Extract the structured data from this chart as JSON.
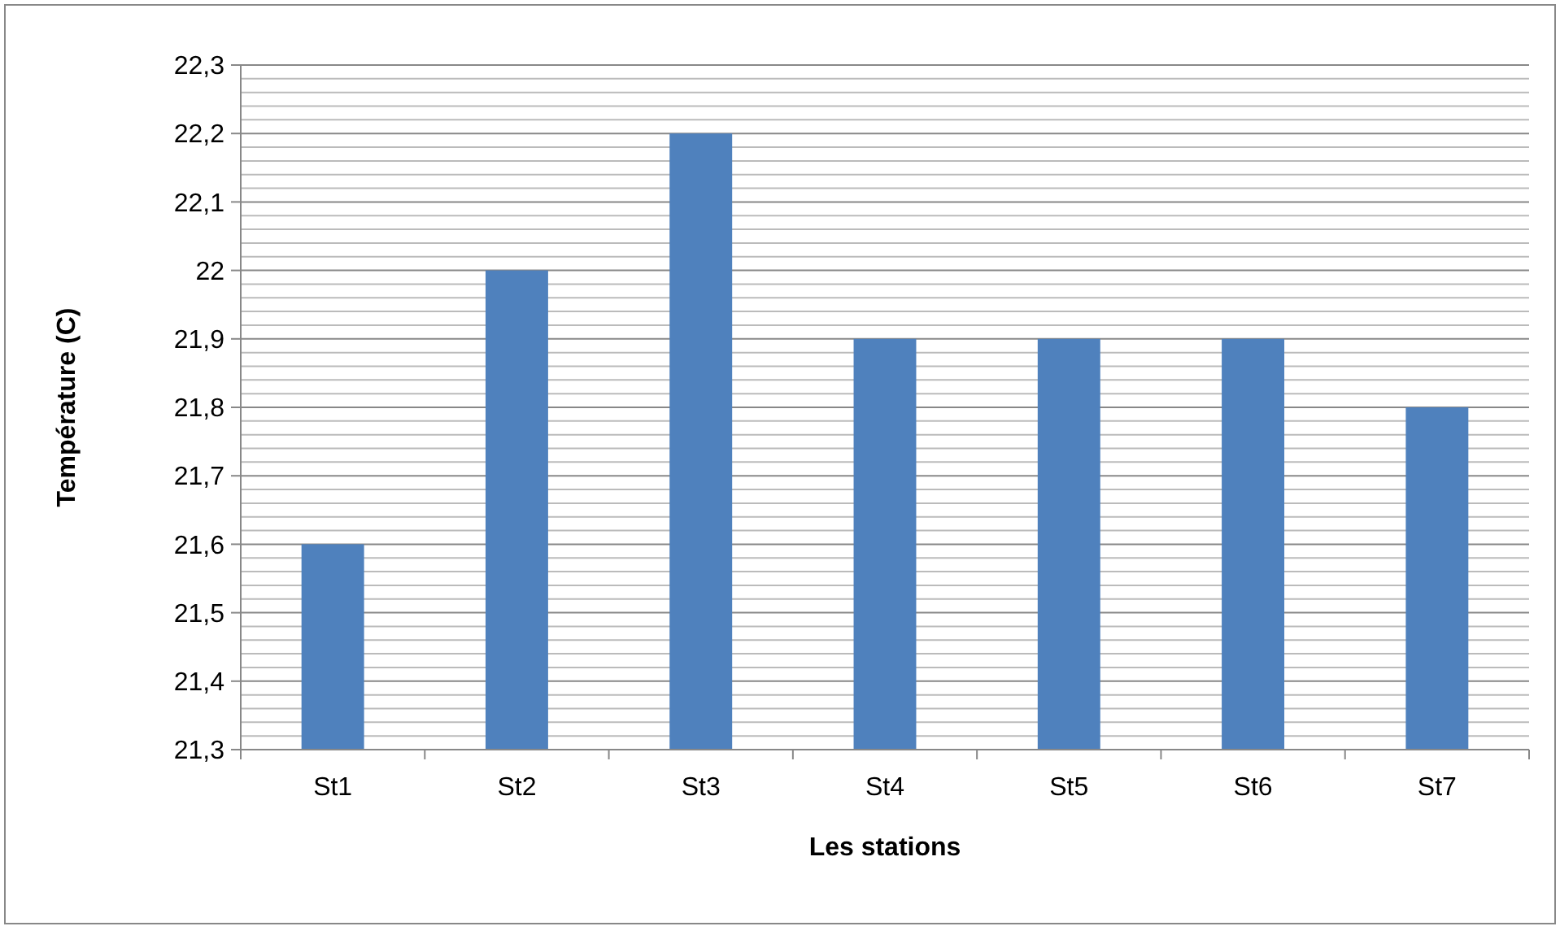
{
  "chart_data": {
    "type": "bar",
    "xlabel": "Les stations",
    "ylabel": "Température (C)",
    "categories": [
      "St1",
      "St2",
      "St3",
      "St4",
      "St5",
      "St6",
      "St7"
    ],
    "values": [
      21.6,
      22.0,
      22.2,
      21.9,
      21.9,
      21.9,
      21.8
    ],
    "color": "#4f81bd",
    "ylim": [
      21.3,
      22.3
    ],
    "yticks": [
      {
        "value": 21.3,
        "label": "21,3"
      },
      {
        "value": 21.32,
        "label": null
      },
      {
        "value": 21.34,
        "label": null
      },
      {
        "value": 21.36,
        "label": null
      },
      {
        "value": 21.38,
        "label": null
      },
      {
        "value": 21.4,
        "label": "21,4"
      },
      {
        "value": 21.42,
        "label": null
      },
      {
        "value": 21.44,
        "label": null
      },
      {
        "value": 21.46,
        "label": null
      },
      {
        "value": 21.48,
        "label": null
      },
      {
        "value": 21.5,
        "label": "21,5"
      },
      {
        "value": 21.52,
        "label": null
      },
      {
        "value": 21.54,
        "label": null
      },
      {
        "value": 21.56,
        "label": null
      },
      {
        "value": 21.58,
        "label": null
      },
      {
        "value": 21.6,
        "label": "21,6"
      },
      {
        "value": 21.62,
        "label": null
      },
      {
        "value": 21.64,
        "label": null
      },
      {
        "value": 21.66,
        "label": null
      },
      {
        "value": 21.68,
        "label": null
      },
      {
        "value": 21.7,
        "label": "21,7"
      },
      {
        "value": 21.72,
        "label": null
      },
      {
        "value": 21.74,
        "label": null
      },
      {
        "value": 21.76,
        "label": null
      },
      {
        "value": 21.78,
        "label": null
      },
      {
        "value": 21.8,
        "label": "21,8"
      },
      {
        "value": 21.82,
        "label": null
      },
      {
        "value": 21.84,
        "label": null
      },
      {
        "value": 21.86,
        "label": null
      },
      {
        "value": 21.88,
        "label": null
      },
      {
        "value": 21.9,
        "label": "21,9"
      },
      {
        "value": 21.92,
        "label": null
      },
      {
        "value": 21.94,
        "label": null
      },
      {
        "value": 21.96,
        "label": null
      },
      {
        "value": 21.98,
        "label": null
      },
      {
        "value": 22.0,
        "label": "22"
      },
      {
        "value": 22.02,
        "label": null
      },
      {
        "value": 22.04,
        "label": null
      },
      {
        "value": 22.06,
        "label": null
      },
      {
        "value": 22.08,
        "label": null
      },
      {
        "value": 22.1,
        "label": "22,1"
      },
      {
        "value": 22.12,
        "label": null
      },
      {
        "value": 22.14,
        "label": null
      },
      {
        "value": 22.16,
        "label": null
      },
      {
        "value": 22.18,
        "label": null
      },
      {
        "value": 22.2,
        "label": "22,2"
      },
      {
        "value": 22.22,
        "label": null
      },
      {
        "value": 22.24,
        "label": null
      },
      {
        "value": 22.26,
        "label": null
      },
      {
        "value": 22.28,
        "label": null
      },
      {
        "value": 22.3,
        "label": "22,3"
      }
    ],
    "grid": "y"
  }
}
